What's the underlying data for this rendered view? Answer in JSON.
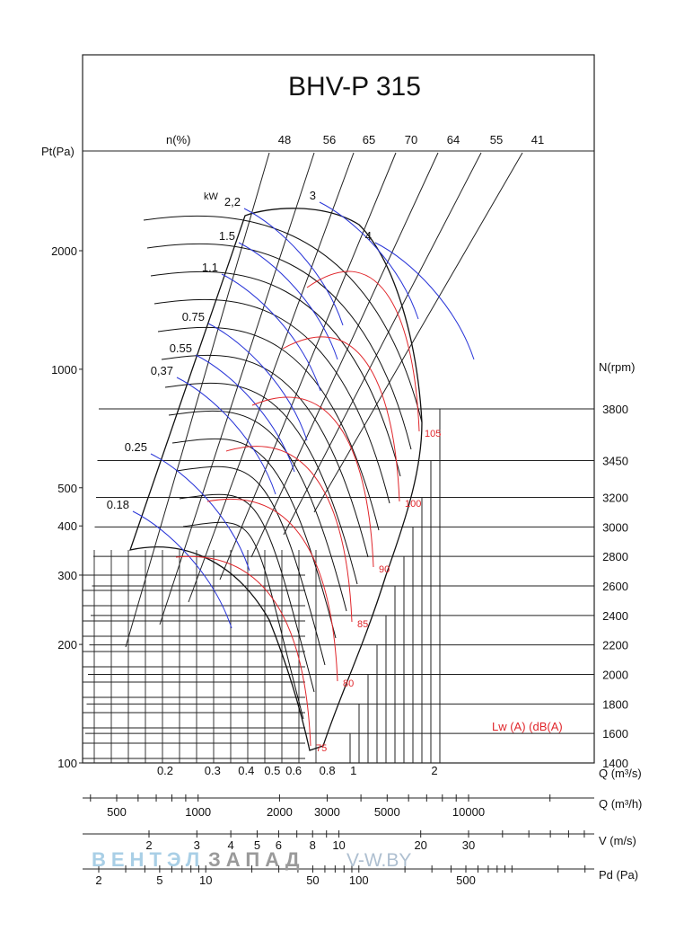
{
  "chart_data": {
    "type": "line",
    "title": "BHV-P 315",
    "y_axis": {
      "label": "Pt(Pa)",
      "scale": "log",
      "ylim": [
        100,
        3500
      ],
      "ticks": [
        "100",
        "200",
        "300",
        "400",
        "500",
        "1000",
        "2000"
      ]
    },
    "x_axis": {
      "label": "Q (m³/s)",
      "scale": "log",
      "xlim": [
        0.1,
        3.0
      ],
      "ticks": [
        "0.2",
        "0.3",
        "0.4",
        "0.5",
        "0.6",
        "0.8",
        "1",
        "2"
      ]
    },
    "q_m3h_axis": {
      "label": "Q (m³/h)",
      "ticks": [
        "500",
        "1000",
        "2000",
        "3000",
        "5000",
        "10000"
      ]
    },
    "v_axis": {
      "label": "V (m/s)",
      "ticks": [
        "2",
        "3",
        "4",
        "5",
        "6",
        "8",
        "10",
        "20",
        "30"
      ]
    },
    "pd_axis": {
      "label": "Pd (Pa)",
      "ticks": [
        "2",
        "5",
        "10",
        "50",
        "100",
        "500"
      ]
    },
    "efficiency": {
      "label": "n(%)",
      "values": [
        "48",
        "56",
        "65",
        "70",
        "64",
        "55",
        "41"
      ]
    },
    "power": {
      "unit_label": "kW",
      "values": [
        "0.18",
        "0.25",
        "0,37",
        "0.55",
        "0.75",
        "1.1",
        "1.5",
        "2,2",
        "3",
        "4"
      ],
      "anchor_q": [
        0.12,
        0.14,
        0.2,
        0.25,
        0.3,
        0.34,
        0.38,
        0.4,
        0.65,
        0.88
      ]
    },
    "speed": {
      "label": "N(rpm)",
      "values": [
        "3800",
        "3450",
        "3200",
        "3000",
        "2800",
        "2600",
        "2400",
        "2200",
        "2000",
        "1800",
        "1600",
        "1400"
      ]
    },
    "noise": {
      "label": "Lw (A) (dB(A)",
      "values": [
        "75",
        "80",
        "85",
        "90",
        "100",
        "105"
      ]
    }
  },
  "watermark": {
    "brand_blue": "ВЕНТЭЛ",
    "brand_dark": "ЗАПАД",
    "site": "V-W.BY"
  }
}
